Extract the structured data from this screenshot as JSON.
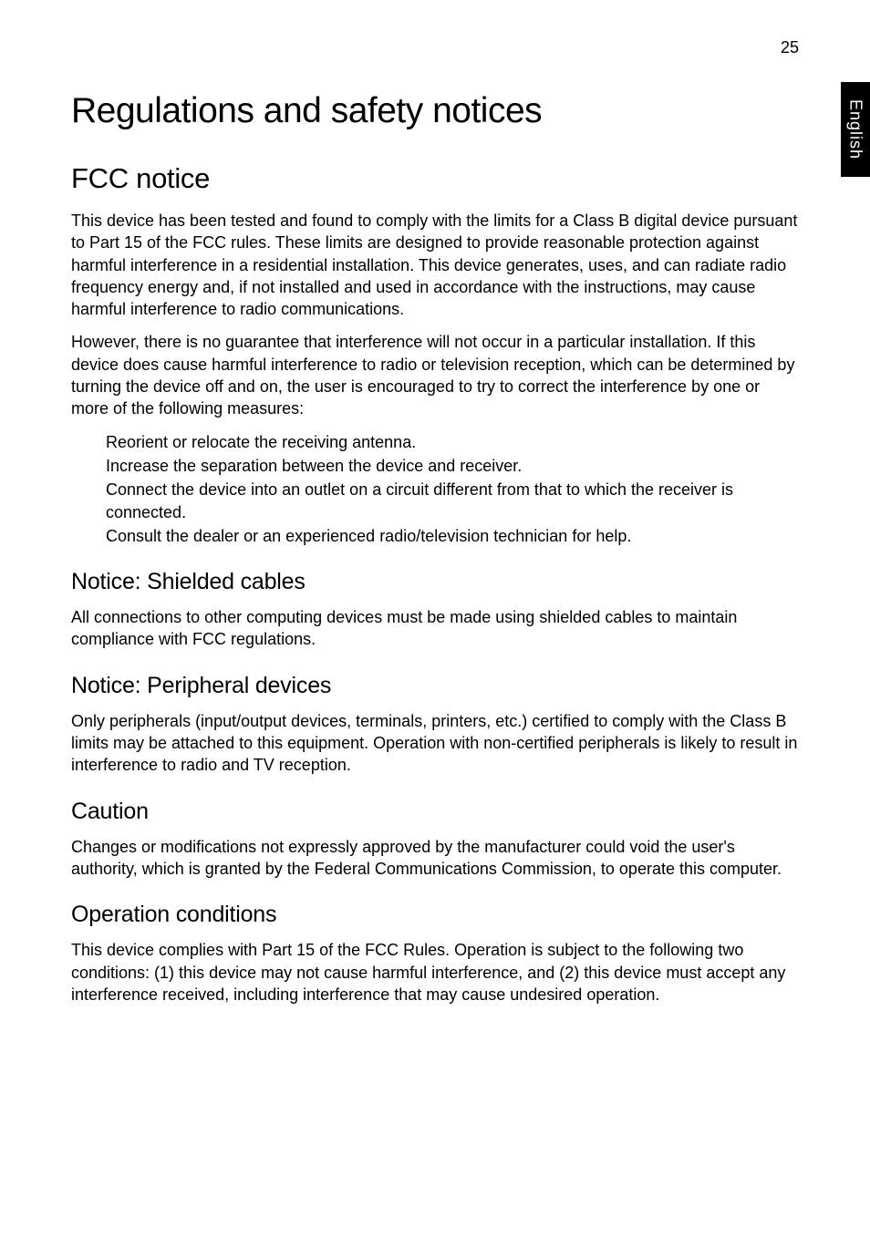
{
  "page_number": "25",
  "side_tab": "English",
  "chapter_title": "Regulations and safety notices",
  "section_fcc": {
    "title": "FCC notice",
    "para1": "This device has been tested and found to comply with the limits for a Class B digital device pursuant to Part 15 of the FCC rules. These limits are designed to provide reasonable protection against harmful interference in a residential installation. This device generates, uses, and can radiate radio frequency energy and, if not installed and used in accordance with the instructions, may cause harmful interference to radio communications.",
    "para2": "However, there is no guarantee that interference will not occur in a particular installation. If this device does cause harmful interference to radio or television reception, which can be determined by turning the device off and on, the user is encouraged to try to correct the interference by one or more of the following measures:",
    "bullets": [
      "Reorient or relocate the receiving antenna.",
      "Increase the separation between the device and receiver.",
      "Connect the device into an outlet on a circuit different from that to which the receiver is connected.",
      "Consult the dealer or an experienced radio/television technician for help."
    ]
  },
  "section_shielded": {
    "title": "Notice: Shielded cables",
    "para": "All connections to other computing devices must be made using shielded cables to maintain compliance with FCC regulations."
  },
  "section_peripheral": {
    "title": "Notice: Peripheral devices",
    "para": "Only peripherals (input/output devices, terminals, printers, etc.) certified to comply with the Class B limits may be attached to this equipment. Operation with non-certified peripherals is likely to result in interference to radio and TV reception."
  },
  "section_caution": {
    "title": "Caution",
    "para": "Changes or modifications not expressly approved by the manufacturer could void the user's authority, which is granted by the Federal Communications Commission, to operate this computer."
  },
  "section_operation": {
    "title": "Operation conditions",
    "para": "This device complies with Part 15 of the FCC Rules. Operation is subject to the following two conditions: (1) this device may not cause harmful interference, and (2) this device must accept any interference received, including interference that may cause undesired operation."
  },
  "style": {
    "body_fontsize": 18,
    "h1_fontsize": 39,
    "h2_fontsize": 31,
    "h3_fontsize": 25,
    "text_color": "#000000",
    "background_color": "#ffffff",
    "tab_bg": "#000000",
    "tab_fg": "#ffffff"
  }
}
